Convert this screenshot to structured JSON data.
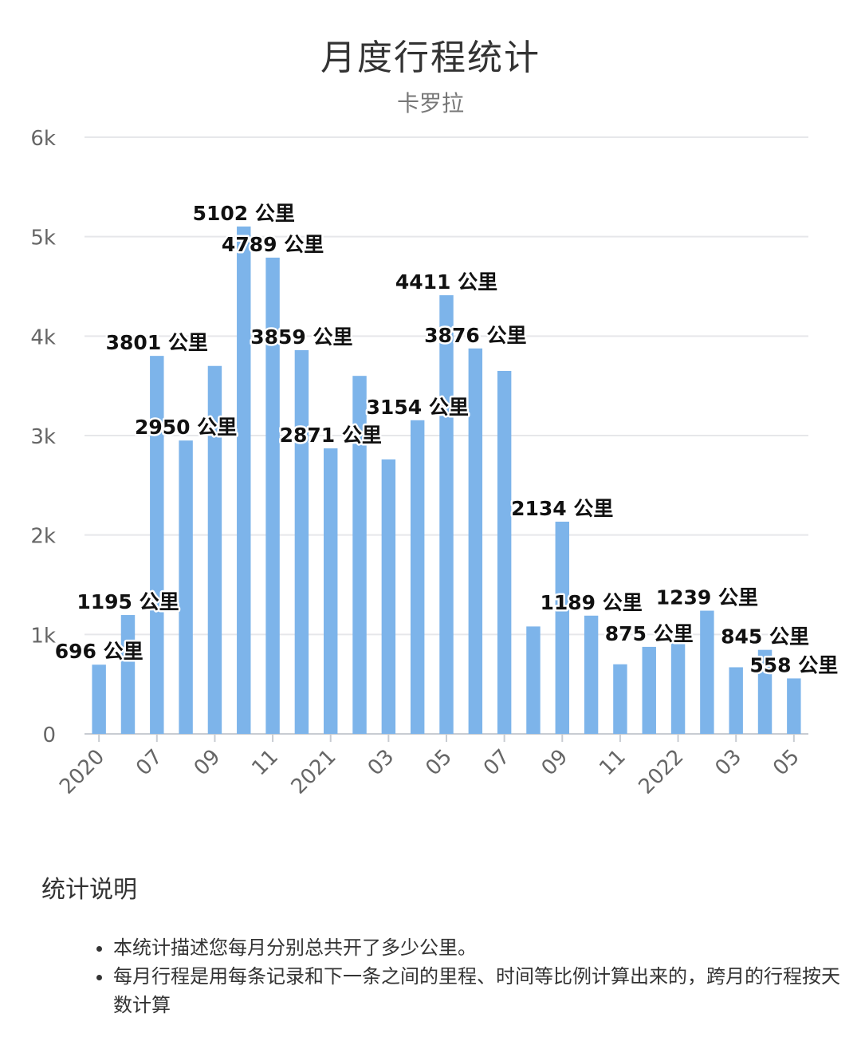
{
  "chart_data": {
    "type": "bar",
    "title": "月度行程统计",
    "subtitle": "卡罗拉",
    "unit": "公里",
    "ylim": [
      0,
      6000
    ],
    "y_ticks": [
      0,
      1000,
      2000,
      3000,
      4000,
      5000,
      6000
    ],
    "y_tick_labels": [
      "0",
      "1k",
      "2k",
      "3k",
      "4k",
      "5k",
      "6k"
    ],
    "categories": [
      "2020-05",
      "2020-06",
      "2020-07",
      "2020-08",
      "2020-09",
      "2020-10",
      "2020-11",
      "2020-12",
      "2021-01",
      "2021-02",
      "2021-03",
      "2021-04",
      "2021-05",
      "2021-06",
      "2021-07",
      "2021-08",
      "2021-09",
      "2021-10",
      "2021-11",
      "2021-12",
      "2022-01",
      "2022-02",
      "2022-03",
      "2022-04",
      "2022-05"
    ],
    "values": [
      696,
      1195,
      3801,
      2950,
      3700,
      5102,
      4789,
      3859,
      2871,
      3600,
      2760,
      3154,
      4411,
      3876,
      3650,
      1080,
      2134,
      1189,
      700,
      875,
      920,
      1239,
      670,
      845,
      558
    ],
    "data_labels": [
      "696 公里",
      "1195 公里",
      "3801 公里",
      "2950 公里",
      "",
      "5102 公里",
      "4789 公里",
      "3859 公里",
      "2871 公里",
      "",
      "",
      "3154 公里",
      "4411 公里",
      "3876 公里",
      "",
      "",
      "2134 公里",
      "1189 公里",
      "",
      "875 公里",
      "",
      "1239 公里",
      "",
      "845 公里",
      "558 公里"
    ],
    "x_tick_labels": [
      "2020",
      "07",
      "09",
      "11",
      "2021",
      "03",
      "05",
      "07",
      "09",
      "11",
      "2022",
      "03",
      "05"
    ],
    "x_tick_indices": [
      0,
      2,
      4,
      6,
      8,
      10,
      12,
      14,
      16,
      18,
      20,
      22,
      24
    ],
    "grid": true,
    "bar_color": "#7db4ea"
  },
  "notes": {
    "title": "统计说明",
    "items": [
      "本统计描述您每月分别总共开了多少公里。",
      "每月行程是用每条记录和下一条之间的里程、时间等比例计算出来的，跨月的行程按天数计算"
    ]
  }
}
